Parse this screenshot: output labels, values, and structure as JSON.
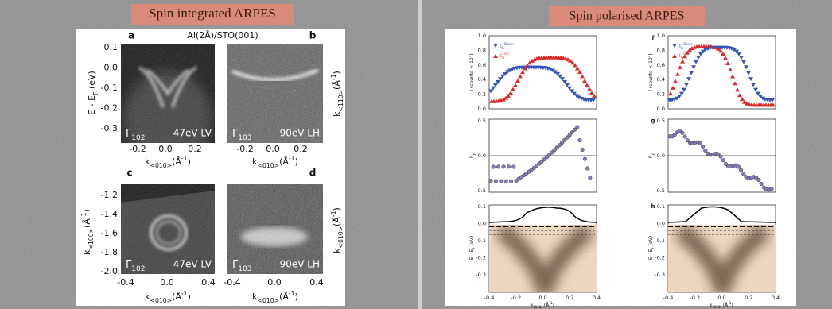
{
  "left_slide": {
    "title": "Spin integrated ARPES",
    "header": "Al(2Å)/STO(001)",
    "panels": [
      {
        "letter": "a",
        "gamma": "Γ",
        "gamma_sub": "102",
        "beam": "47eV LV"
      },
      {
        "letter": "b",
        "gamma": "Γ",
        "gamma_sub": "103",
        "beam": "90eV LH"
      },
      {
        "letter": "c",
        "gamma": "Γ",
        "gamma_sub": "102",
        "beam": "47eV LV"
      },
      {
        "letter": "d",
        "gamma": "Γ",
        "gamma_sub": "103",
        "beam": "90eV LH"
      }
    ],
    "yticks_top": [
      "0.1",
      "0.0",
      "-0.1",
      "-0.2",
      "-0.3"
    ],
    "yticks_bottom": [
      "-1.2",
      "-1.4",
      "-1.6",
      "-1.8",
      "-2.0"
    ],
    "xticks_top": [
      "-0.2",
      "0.0",
      "0.2"
    ],
    "xticks_bottom": [
      "-0.4",
      "0.0",
      "0.4"
    ],
    "ylabel_energy": [
      {
        "text": "E - E",
        "style": "normal"
      },
      {
        "text": "F",
        "style": "sub"
      },
      {
        "text": " (eV)",
        "style": "normal"
      }
    ],
    "ylabel_k100": [
      {
        "text": "k",
        "style": "normal"
      },
      {
        "text": "<100>",
        "style": "sub"
      },
      {
        "text": "(Å",
        "style": "normal"
      },
      {
        "text": "-1",
        "style": "sup"
      },
      {
        "text": ")",
        "style": "normal"
      }
    ],
    "ylabel_k110": [
      {
        "text": "k",
        "style": "normal"
      },
      {
        "text": "<110>",
        "style": "sub"
      },
      {
        "text": "(Å",
        "style": "normal"
      },
      {
        "text": "-1",
        "style": "sup"
      },
      {
        "text": ")",
        "style": "normal"
      }
    ],
    "xlabel_k010": [
      {
        "text": "k",
        "style": "normal"
      },
      {
        "text": "<010>",
        "style": "sub"
      },
      {
        "text": "(Å",
        "style": "normal"
      },
      {
        "text": "-1",
        "style": "sup"
      },
      {
        "text": ")",
        "style": "normal"
      }
    ]
  },
  "right_slide": {
    "title": "Spin polarised ARPES",
    "letters": [
      "f",
      "g",
      "h"
    ],
    "legend_down": [
      {
        "text": "I",
        "style": "normal"
      },
      {
        "text": "G",
        "style": "sub"
      },
      {
        "text": "Down",
        "style": "sup"
      }
    ],
    "legend_up": [
      {
        "text": "I",
        "style": "normal"
      },
      {
        "text": "G",
        "style": "sub"
      },
      {
        "text": "Up",
        "style": "sup"
      }
    ],
    "yticks_f": [
      "1.0",
      "0.8",
      "0.6",
      "0.4",
      "0.2",
      "0.0"
    ],
    "yticks_g": [
      "0.5",
      "0.0",
      "-0.5"
    ],
    "yticks_h": [
      "0.1",
      "0.0",
      "-0.1",
      "-0.2",
      "-0.3"
    ],
    "xticks_h": [
      "-0.4",
      "-0.2",
      "0.0",
      "0.2",
      "0.4"
    ],
    "ylabel_f": [
      {
        "text": "I (counts × 10",
        "style": "normal"
      },
      {
        "text": "3",
        "style": "sup"
      },
      {
        "text": ")",
        "style": "normal"
      }
    ],
    "ylabel_g": [
      {
        "text": "P",
        "style": "normal"
      },
      {
        "text": "y",
        "style": "sub"
      }
    ],
    "ylabel_h": [
      {
        "text": "E - E",
        "style": "normal"
      },
      {
        "text": "F",
        "style": "sub"
      },
      {
        "text": " (eV)",
        "style": "normal"
      }
    ],
    "xlabel_h": [
      {
        "text": "k",
        "style": "normal"
      },
      {
        "text": "(010)",
        "style": "sub"
      },
      {
        "text": " (Å",
        "style": "normal"
      },
      {
        "text": "-1",
        "style": "sup"
      },
      {
        "text": ")",
        "style": "normal"
      }
    ]
  }
}
